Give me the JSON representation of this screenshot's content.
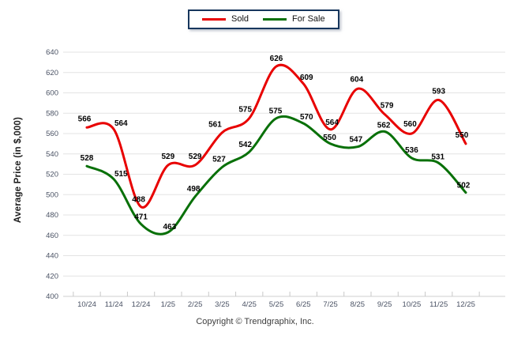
{
  "y_axis_title": "Average Price (in $,000)",
  "footer": "Copyright © Trendgraphix, Inc.",
  "legend": {
    "items": [
      {
        "label": "Sold",
        "color": "#e80000"
      },
      {
        "label": "For Sale",
        "color": "#087008"
      }
    ],
    "border_color": "#17365d"
  },
  "chart_data": {
    "type": "line",
    "title": "",
    "xlabel": "",
    "ylabel": "Average Price (in $,000)",
    "categories": [
      "10/24",
      "11/24",
      "12/24",
      "1/25",
      "2/25",
      "3/25",
      "4/25",
      "5/25",
      "6/25",
      "7/25",
      "8/25",
      "9/25",
      "10/25",
      "11/25",
      "12/25"
    ],
    "series": [
      {
        "name": "Sold",
        "color": "#e80000",
        "values": [
          566,
          564,
          488,
          529,
          529,
          561,
          575,
          626,
          609,
          564,
          604,
          579,
          560,
          593,
          550
        ],
        "label_offsets": [
          [
            -3,
            -8
          ],
          [
            9,
            -5
          ],
          [
            -3,
            -6
          ],
          [
            0,
            -8
          ],
          [
            0,
            -8
          ],
          [
            -9,
            -7
          ],
          [
            -5,
            -8
          ],
          [
            0,
            -7
          ],
          [
            4,
            -5
          ],
          [
            2,
            -6
          ],
          [
            -1,
            -9
          ],
          [
            3,
            -8
          ],
          [
            -2,
            -9
          ],
          [
            0,
            -8
          ],
          [
            -5,
            -8
          ]
        ]
      },
      {
        "name": "For Sale",
        "color": "#087008",
        "values": [
          528,
          515,
          471,
          463,
          498,
          527,
          542,
          575,
          570,
          550,
          547,
          562,
          536,
          531,
          502
        ],
        "label_offsets": [
          [
            0,
            -7
          ],
          [
            9,
            -4
          ],
          [
            0,
            -6
          ],
          [
            2,
            -4
          ],
          [
            -2,
            -7
          ],
          [
            -4,
            -7
          ],
          [
            -5,
            -6
          ],
          [
            -1,
            -6
          ],
          [
            4,
            -5
          ],
          [
            -1,
            -5
          ],
          [
            -2,
            -6
          ],
          [
            -1,
            -5
          ],
          [
            0,
            -7
          ],
          [
            -1,
            -5
          ],
          [
            -3,
            -6
          ]
        ]
      }
    ],
    "ylim": [
      400,
      640
    ],
    "ytick_step": 20,
    "grid": true,
    "smooth": true,
    "legend_position": "top-center",
    "grid_color": "#e3e3e3",
    "axis_color": "#cfcfcf",
    "tick_label_color": "#4a5264",
    "data_label_color": "#000000"
  }
}
